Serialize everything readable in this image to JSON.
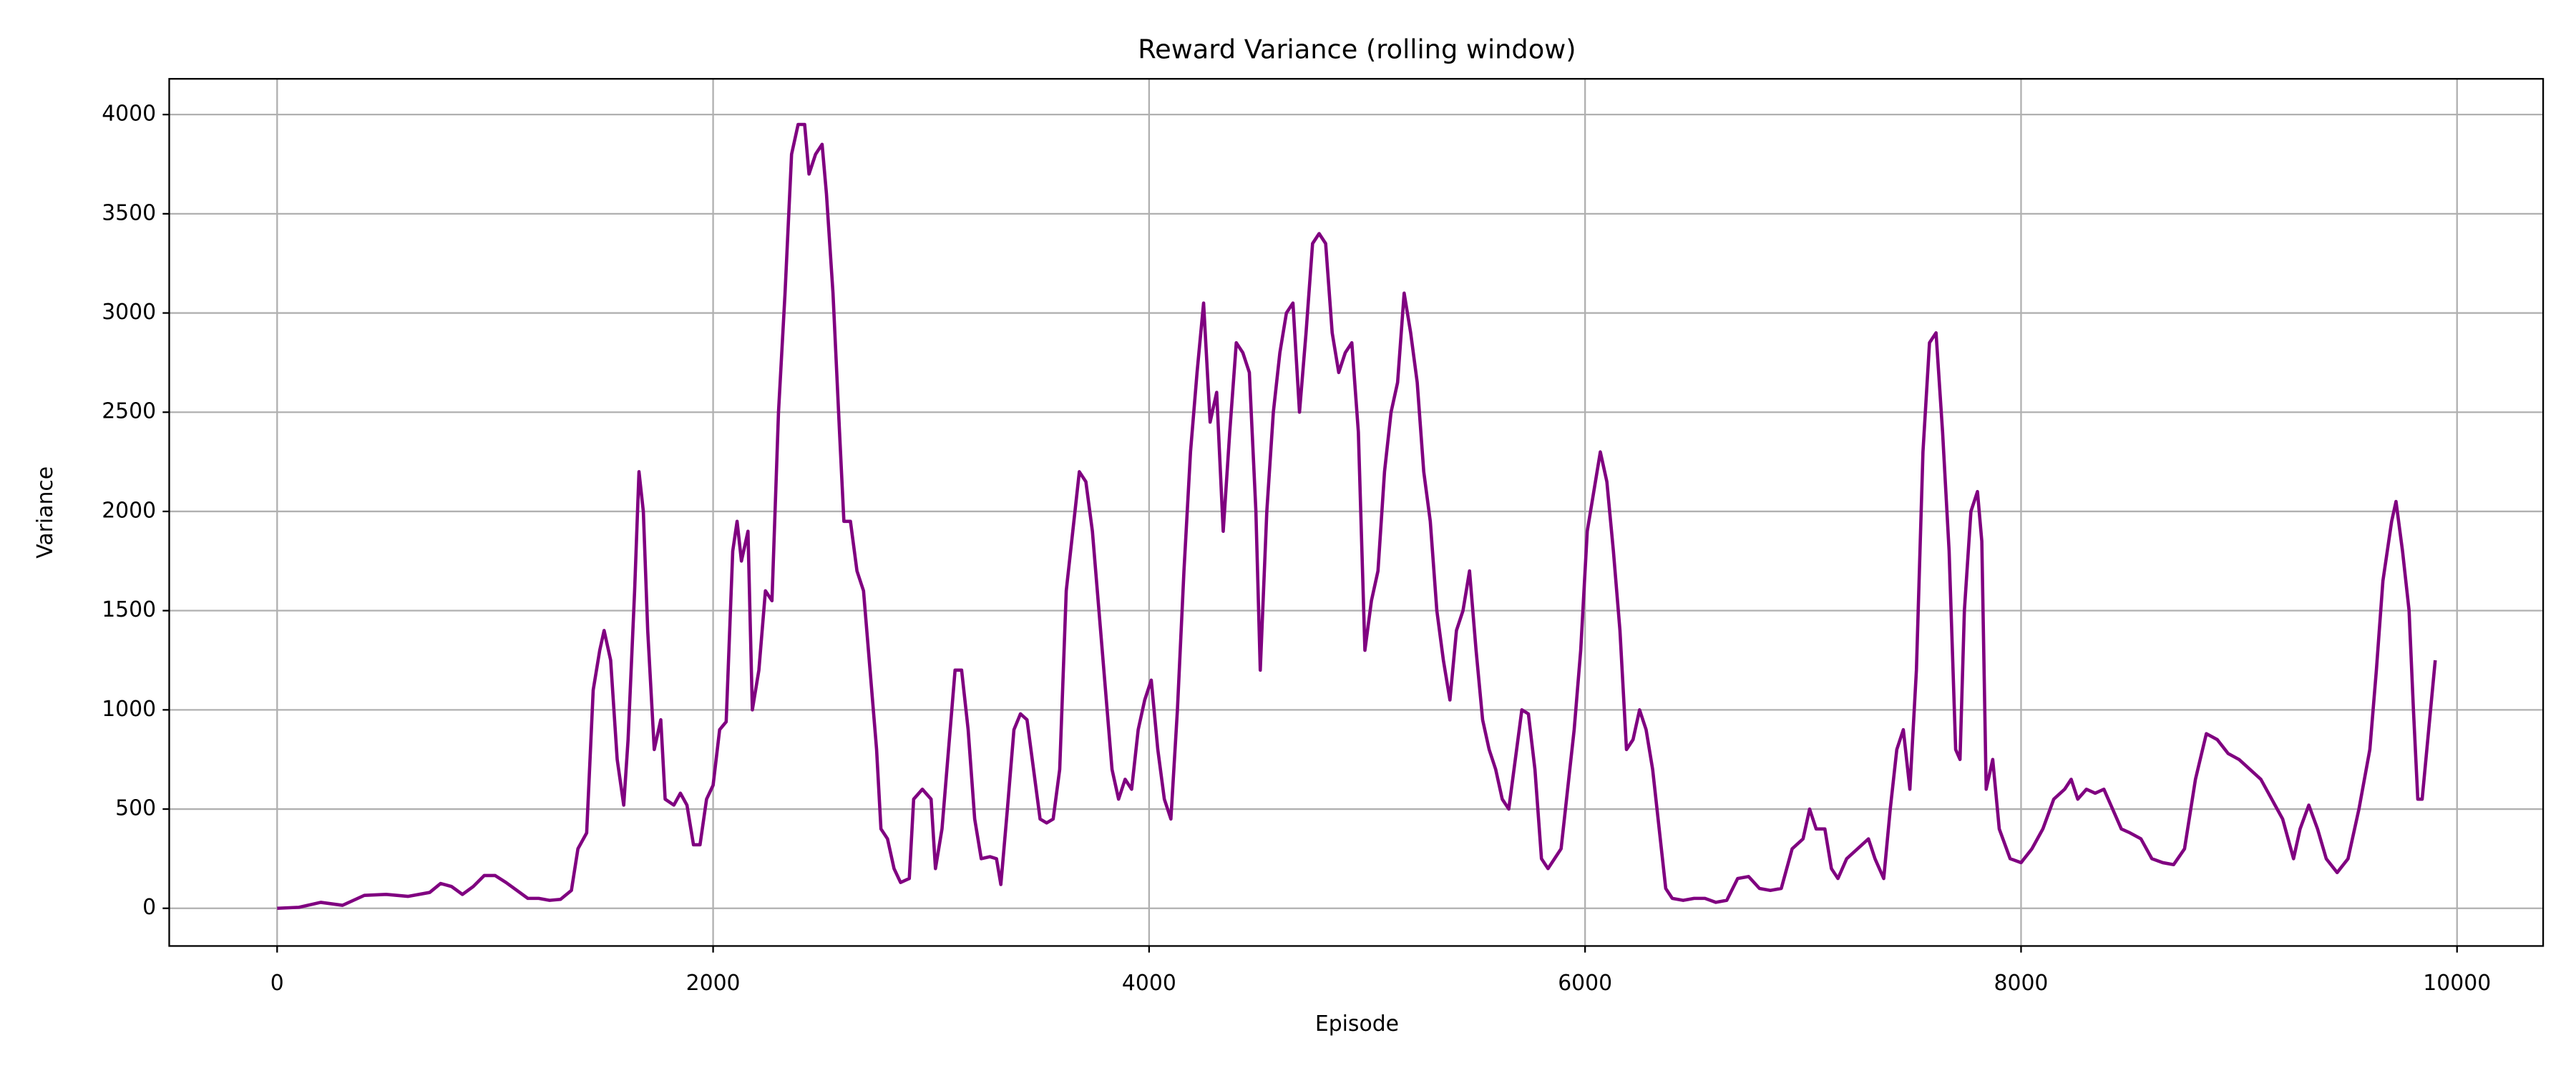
{
  "chart_data": {
    "type": "line",
    "title": "Reward Variance (rolling window)",
    "xlabel": "Episode",
    "ylabel": "Variance",
    "xlim": [
      -495,
      10395
    ],
    "ylim": [
      -190,
      4180
    ],
    "xticks": [
      0,
      2000,
      4000,
      6000,
      8000,
      10000
    ],
    "yticks": [
      0,
      500,
      1000,
      1500,
      2000,
      2500,
      3000,
      3500,
      4000
    ],
    "grid": true,
    "x": [
      0,
      100,
      200,
      300,
      400,
      500,
      600,
      700,
      750,
      800,
      850,
      900,
      950,
      1000,
      1050,
      1100,
      1150,
      1200,
      1250,
      1300,
      1350,
      1380,
      1420,
      1450,
      1480,
      1500,
      1530,
      1560,
      1590,
      1610,
      1640,
      1660,
      1680,
      1700,
      1730,
      1760,
      1780,
      1820,
      1850,
      1880,
      1910,
      1940,
      1970,
      2000,
      2030,
      2060,
      2090,
      2110,
      2130,
      2160,
      2180,
      2210,
      2240,
      2270,
      2300,
      2330,
      2360,
      2390,
      2420,
      2440,
      2470,
      2500,
      2520,
      2550,
      2580,
      2600,
      2630,
      2660,
      2690,
      2720,
      2750,
      2770,
      2800,
      2830,
      2860,
      2900,
      2920,
      2960,
      3000,
      3020,
      3050,
      3080,
      3110,
      3140,
      3170,
      3200,
      3230,
      3270,
      3300,
      3320,
      3350,
      3380,
      3410,
      3440,
      3470,
      3500,
      3530,
      3560,
      3590,
      3620,
      3650,
      3680,
      3710,
      3740,
      3770,
      3800,
      3830,
      3860,
      3890,
      3920,
      3950,
      3980,
      4010,
      4040,
      4070,
      4100,
      4130,
      4160,
      4190,
      4220,
      4250,
      4280,
      4310,
      4340,
      4370,
      4400,
      4430,
      4460,
      4490,
      4510,
      4540,
      4570,
      4600,
      4630,
      4660,
      4690,
      4720,
      4750,
      4780,
      4810,
      4840,
      4870,
      4900,
      4930,
      4960,
      4990,
      5020,
      5050,
      5080,
      5110,
      5140,
      5170,
      5200,
      5230,
      5260,
      5290,
      5320,
      5350,
      5380,
      5410,
      5440,
      5470,
      5500,
      5530,
      5560,
      5590,
      5620,
      5650,
      5680,
      5710,
      5740,
      5770,
      5800,
      5830,
      5860,
      5890,
      5920,
      5950,
      5980,
      6010,
      6040,
      6070,
      6100,
      6130,
      6160,
      6190,
      6220,
      6250,
      6280,
      6310,
      6340,
      6370,
      6400,
      6450,
      6500,
      6550,
      6600,
      6650,
      6700,
      6750,
      6800,
      6850,
      6900,
      6950,
      7000,
      7030,
      7060,
      7100,
      7130,
      7160,
      7200,
      7250,
      7300,
      7330,
      7370,
      7400,
      7430,
      7460,
      7490,
      7520,
      7550,
      7580,
      7610,
      7640,
      7670,
      7700,
      7720,
      7740,
      7770,
      7800,
      7820,
      7840,
      7870,
      7900,
      7950,
      8000,
      8050,
      8100,
      8150,
      8200,
      8230,
      8260,
      8300,
      8340,
      8380,
      8420,
      8460,
      8500,
      8550,
      8600,
      8650,
      8700,
      8750,
      8800,
      8850,
      8900,
      8950,
      9000,
      9050,
      9100,
      9150,
      9200,
      9250,
      9280,
      9320,
      9360,
      9400,
      9450,
      9500,
      9550,
      9600,
      9630,
      9660,
      9700,
      9720,
      9750,
      9780,
      9800,
      9820,
      9840,
      9870,
      9900
    ],
    "series": [
      {
        "color": "#800080",
        "values": [
          0,
          5,
          30,
          15,
          65,
          70,
          60,
          80,
          125,
          110,
          70,
          110,
          165,
          165,
          130,
          90,
          50,
          50,
          40,
          45,
          90,
          300,
          380,
          1100,
          1300,
          1400,
          1250,
          750,
          520,
          850,
          1600,
          2200,
          2000,
          1400,
          800,
          950,
          550,
          520,
          580,
          520,
          320,
          320,
          550,
          620,
          900,
          940,
          1800,
          1950,
          1750,
          1900,
          1000,
          1200,
          1600,
          1550,
          2500,
          3100,
          3800,
          3950,
          3950,
          3700,
          3800,
          3850,
          3600,
          3100,
          2400,
          1950,
          1950,
          1700,
          1600,
          1200,
          800,
          400,
          350,
          200,
          130,
          150,
          550,
          600,
          550,
          200,
          400,
          800,
          1200,
          1200,
          900,
          450,
          250,
          260,
          250,
          120,
          500,
          900,
          980,
          950,
          700,
          450,
          430,
          450,
          700,
          1600,
          1900,
          2200,
          2150,
          1900,
          1500,
          1100,
          700,
          550,
          650,
          600,
          900,
          1050,
          1150,
          800,
          550,
          450,
          1000,
          1700,
          2300,
          2700,
          3050,
          2450,
          2600,
          1900,
          2400,
          2850,
          2800,
          2700,
          2000,
          1200,
          2000,
          2500,
          2800,
          3000,
          3050,
          2500,
          2900,
          3350,
          3400,
          3350,
          2900,
          2700,
          2800,
          2850,
          2400,
          1300,
          1550,
          1700,
          2200,
          2500,
          2650,
          3100,
          2900,
          2650,
          2200,
          1950,
          1500,
          1250,
          1050,
          1400,
          1500,
          1700,
          1300,
          950,
          800,
          700,
          550,
          500,
          750,
          1000,
          980,
          700,
          250,
          200,
          250,
          300,
          600,
          900,
          1300,
          1900,
          2100,
          2300,
          2150,
          1800,
          1400,
          800,
          850,
          1000,
          900,
          700,
          400,
          100,
          50,
          40,
          50,
          50,
          30,
          40,
          150,
          160,
          100,
          90,
          100,
          300,
          350,
          500,
          400,
          400,
          200,
          150,
          250,
          300,
          350,
          250,
          150,
          500,
          800,
          900,
          600,
          1200,
          2300,
          2850,
          2900,
          2400,
          1800,
          800,
          750,
          1500,
          2000,
          2100,
          1850,
          600,
          750,
          400,
          250,
          230,
          300,
          400,
          550,
          600,
          650,
          550,
          600,
          580,
          600,
          500,
          400,
          380,
          350,
          250,
          230,
          220,
          300,
          650,
          880,
          850,
          780,
          750,
          700,
          650,
          550,
          450,
          250,
          400,
          520,
          400,
          250,
          180,
          250,
          500,
          800,
          1200,
          1650,
          1950,
          2050,
          1800,
          1500,
          1000,
          550,
          550,
          900,
          1250
        ]
      }
    ]
  }
}
